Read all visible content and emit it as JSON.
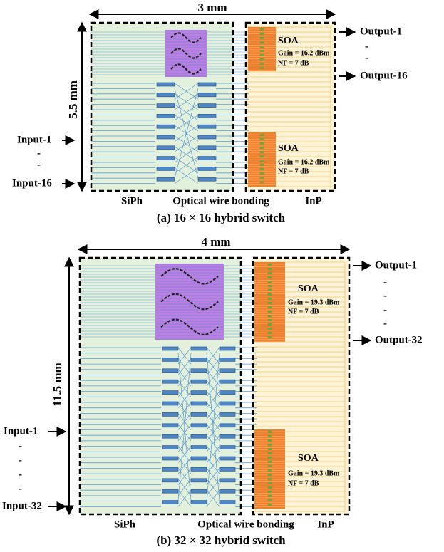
{
  "panels": [
    {
      "width_label": "3 mm",
      "height_label": "5.5 mm",
      "outputs": [
        "Output-1",
        "-",
        "-",
        "Output-16"
      ],
      "inputs": [
        "Input-1",
        "-",
        "-",
        "Input-16"
      ],
      "soas": [
        {
          "label": "SOA",
          "gain": "Gain = 16.2 dBm",
          "nf": "NF = 7 dB"
        },
        {
          "label": "SOA",
          "gain": "Gain = 16.2 dBm",
          "nf": "NF = 7 dB"
        }
      ],
      "regions": [
        "SiPh",
        "Optical wire bonding",
        "InP"
      ],
      "caption": "(a) 16 × 16 hybrid switch"
    },
    {
      "width_label": "4 mm",
      "height_label": "11.5 mm",
      "outputs": [
        "Output-1",
        "-",
        "-",
        "-",
        "-",
        "Output-32"
      ],
      "inputs": [
        "Input-1",
        "-",
        "-",
        "-",
        "-",
        "Input-32"
      ],
      "soas": [
        {
          "label": "SOA",
          "gain": "Gain = 19.3 dBm",
          "nf": "NF = 7 dB"
        },
        {
          "label": "SOA",
          "gain": "Gain = 19.3 dBm",
          "nf": "NF = 7 dB"
        }
      ],
      "regions": [
        "SiPh",
        "Optical wire bonding",
        "InP"
      ],
      "caption": "(b) 32 × 32 hybrid switch"
    }
  ]
}
